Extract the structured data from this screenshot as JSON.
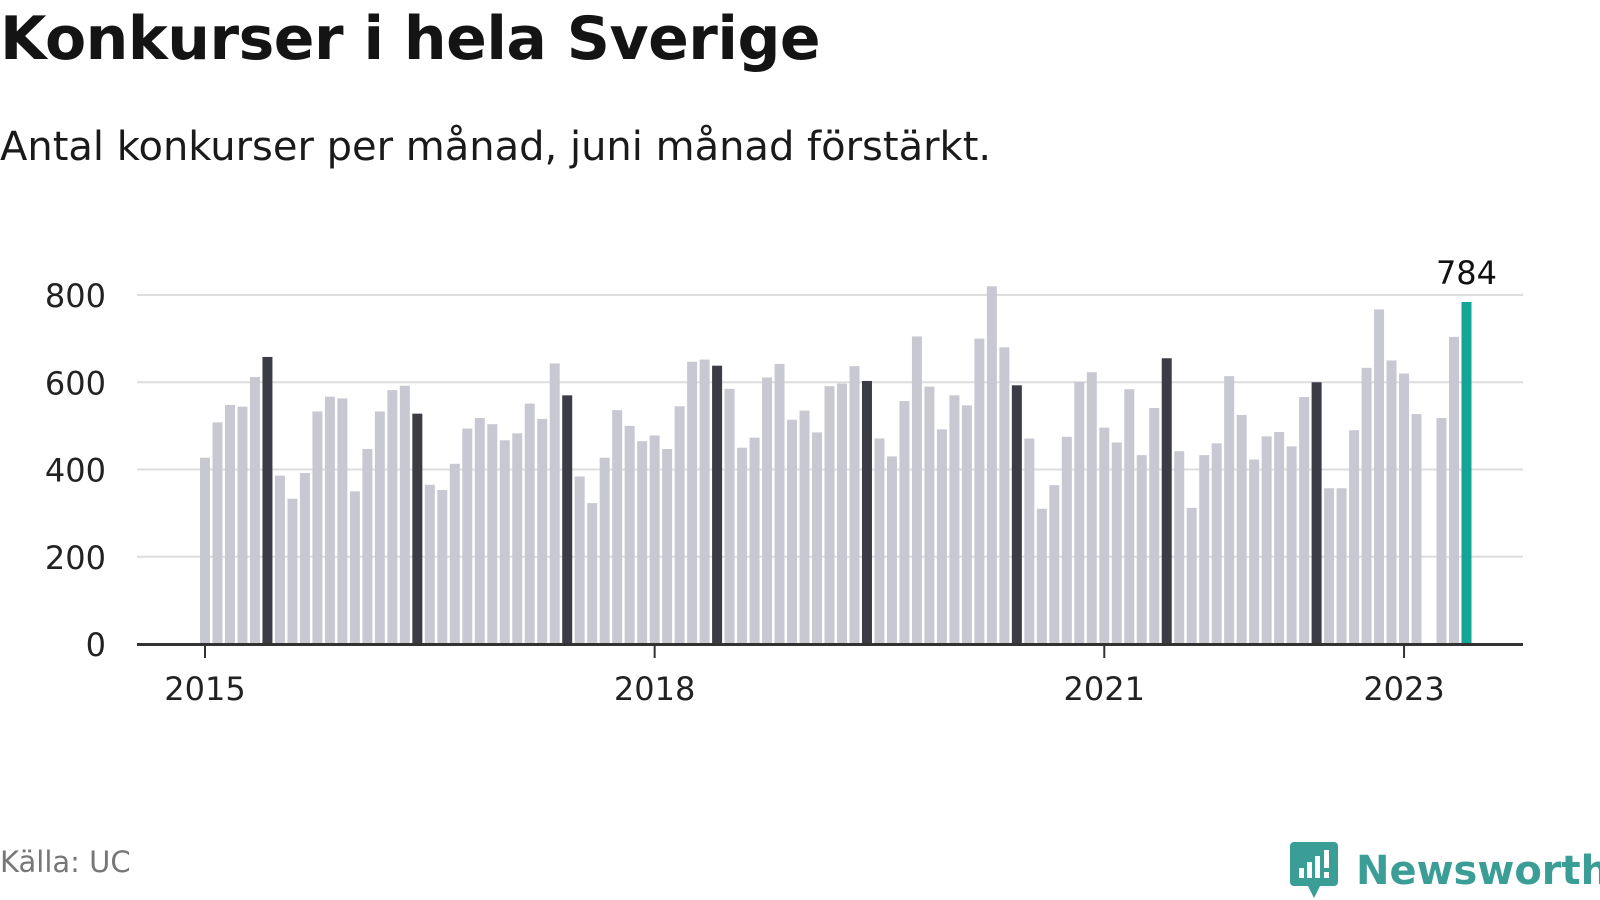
{
  "header": {
    "title": "Konkurser i hela Sverige",
    "subtitle": "Antal konkurser per månad, juni månad förstärkt."
  },
  "footer": {
    "source": "Källa: UC",
    "brand": "Newsworthy"
  },
  "colors": {
    "bar": "#c8c8d2",
    "highlight_june": "#3c3c46",
    "latest": "#14a596",
    "grid": "#dddddd",
    "axis": "#333333",
    "logo": "#3a9d96"
  },
  "chart_data": {
    "type": "bar",
    "title": "Konkurser i hela Sverige",
    "subtitle": "Antal konkurser per månad, juni månad förstärkt.",
    "start": "2015-01",
    "x_tick_labels": [
      "2015",
      "2018",
      "2021",
      "2023"
    ],
    "y_ticks": [
      0,
      200,
      400,
      600,
      800
    ],
    "ylim": [
      0,
      820
    ],
    "grid": true,
    "highlight": "June of every year",
    "latest_label": "784",
    "series": [
      {
        "values": [
          427,
          508,
          548,
          544,
          612,
          658,
          386,
          333,
          392,
          533,
          567,
          563,
          350,
          447,
          533,
          582,
          592,
          528,
          365,
          353,
          413,
          494,
          518,
          504,
          467,
          483,
          551,
          516,
          643,
          570,
          384,
          323,
          427,
          536,
          500,
          465,
          478,
          447,
          545,
          647,
          652,
          638,
          585,
          450,
          473,
          611,
          642,
          514,
          535,
          485,
          591,
          597,
          637,
          603,
          471,
          430,
          557,
          705,
          590,
          492,
          570,
          547,
          700,
          820,
          680,
          593,
          471,
          310,
          364,
          475,
          601,
          623,
          496,
          462,
          584,
          433,
          541,
          655,
          442,
          312,
          433,
          460,
          614,
          525,
          423,
          476,
          486,
          453,
          566,
          600,
          357,
          357,
          490,
          633,
          767,
          650,
          620,
          527,
          null,
          518,
          704,
          784
        ]
      }
    ]
  }
}
